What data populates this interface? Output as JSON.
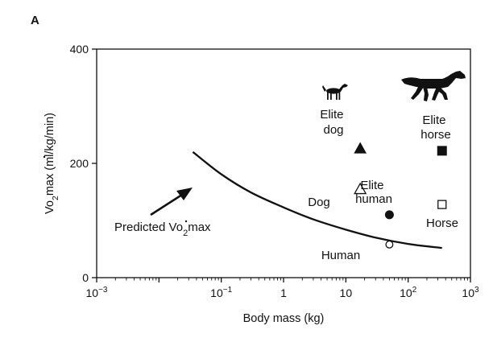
{
  "panel_label": "A",
  "chart_data": {
    "type": "scatter",
    "xscale": "log",
    "xlim_exponent": [
      -3,
      3
    ],
    "ylim": [
      0,
      400
    ],
    "xlabel": "Body mass (kg)",
    "ylabel": {
      "v": "V",
      "o": "o",
      "sub": "2",
      "rest": "max (ml/kg/min)"
    },
    "xticks": [
      {
        "value_exp": -3,
        "base": "10",
        "sup": "−3"
      },
      {
        "value_exp": -1,
        "base": "10",
        "sup": "−1"
      },
      {
        "value_exp": 0,
        "base": "1",
        "sup": ""
      },
      {
        "value_exp": 1,
        "base": "10",
        "sup": ""
      },
      {
        "value_exp": 2,
        "base": "10",
        "sup": "2"
      },
      {
        "value_exp": 3,
        "base": "10",
        "sup": "3"
      }
    ],
    "yticks": [
      {
        "value": 0,
        "label": "0"
      },
      {
        "value": 200,
        "label": "200"
      },
      {
        "value": 400,
        "label": "400"
      }
    ],
    "predicted_curve": {
      "label": "Predicted V̇o2max",
      "label_main": "Predicted ",
      "label_v": "V",
      "label_o": "o",
      "label_sub": "2",
      "label_rest": "max",
      "x": [
        0.035,
        0.1,
        0.3,
        1,
        3,
        10,
        30,
        100,
        350
      ],
      "y": [
        220,
        181,
        149,
        123,
        102,
        84,
        70,
        59,
        52
      ]
    },
    "points": [
      {
        "name": "Elite dog",
        "label_lines": [
          "Elite",
          "dog"
        ],
        "x": 17,
        "y": 226,
        "marker": "triangle",
        "filled": true
      },
      {
        "name": "Dog",
        "label_lines": [
          "Dog"
        ],
        "x": 17,
        "y": 155,
        "marker": "triangle",
        "filled": false
      },
      {
        "name": "Elite human",
        "label_lines": [
          "Elite",
          "human"
        ],
        "x": 50,
        "y": 110,
        "marker": "circle",
        "filled": true
      },
      {
        "name": "Human",
        "label_lines": [
          "Human"
        ],
        "x": 50,
        "y": 58,
        "marker": "circle",
        "filled": false
      },
      {
        "name": "Elite horse",
        "label_lines": [
          "Elite",
          "horse"
        ],
        "x": 350,
        "y": 222,
        "marker": "square",
        "filled": true
      },
      {
        "name": "Horse",
        "label_lines": [
          "Horse"
        ],
        "x": 350,
        "y": 128,
        "marker": "square",
        "filled": false
      }
    ],
    "silhouettes": [
      "dog-icon",
      "horse-icon"
    ]
  }
}
